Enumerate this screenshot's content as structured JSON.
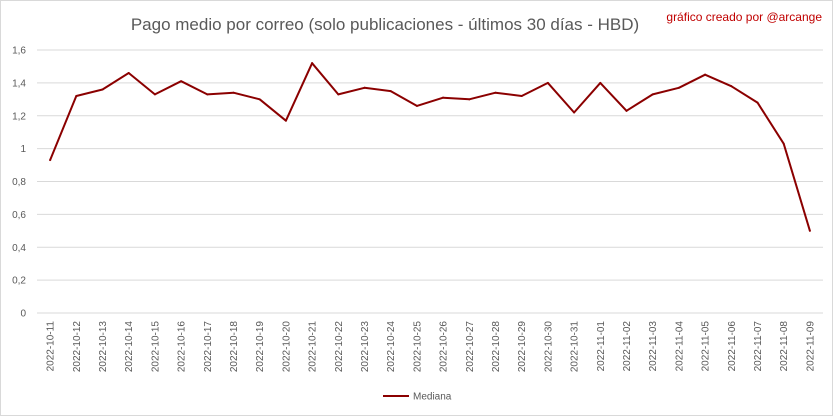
{
  "header": {
    "title": "Pago medio por correo (solo publicaciones - últimos 30 días - HBD)",
    "credit": "gráfico creado por @arcange"
  },
  "colors": {
    "series": "#8b0000",
    "grid": "#d9d9d9",
    "axis_text": "#595959",
    "credit": "#c00000"
  },
  "chart_data": {
    "type": "line",
    "title": "Pago medio por correo (solo publicaciones - últimos 30 días - HBD)",
    "xlabel": "",
    "ylabel": "",
    "ylim": [
      0,
      1.6
    ],
    "yticks": [
      "0",
      "0,2",
      "0,4",
      "0,6",
      "0,8",
      "1",
      "1,2",
      "1,4",
      "1,6"
    ],
    "grid": true,
    "legend_position": "bottom",
    "categories": [
      "2022-10-11",
      "2022-10-12",
      "2022-10-13",
      "2022-10-14",
      "2022-10-15",
      "2022-10-16",
      "2022-10-17",
      "2022-10-18",
      "2022-10-19",
      "2022-10-20",
      "2022-10-21",
      "2022-10-22",
      "2022-10-23",
      "2022-10-24",
      "2022-10-25",
      "2022-10-26",
      "2022-10-27",
      "2022-10-28",
      "2022-10-29",
      "2022-10-30",
      "2022-10-31",
      "2022-11-01",
      "2022-11-02",
      "2022-11-03",
      "2022-11-04",
      "2022-11-05",
      "2022-11-06",
      "2022-11-07",
      "2022-11-08",
      "2022-11-09"
    ],
    "series": [
      {
        "name": "Mediana",
        "values": [
          0.93,
          1.32,
          1.36,
          1.46,
          1.33,
          1.41,
          1.33,
          1.34,
          1.3,
          1.17,
          1.52,
          1.33,
          1.37,
          1.35,
          1.26,
          1.31,
          1.3,
          1.34,
          1.32,
          1.4,
          1.22,
          1.4,
          1.23,
          1.33,
          1.37,
          1.45,
          1.38,
          1.28,
          1.03,
          0.5
        ]
      }
    ]
  }
}
